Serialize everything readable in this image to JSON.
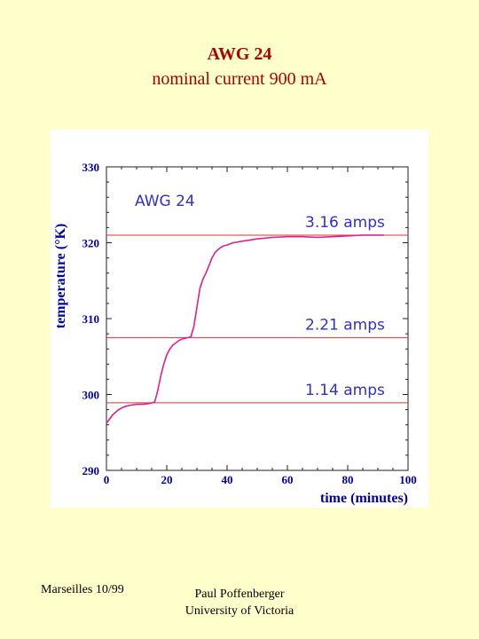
{
  "slide": {
    "title": "AWG 24",
    "subtitle": "nominal current 900 mA",
    "footer_left": "Marseilles 10/99",
    "footer_author": "Paul Poffenberger",
    "footer_affiliation": "University of Victoria"
  },
  "colors": {
    "background": "#ffffcc",
    "title": "#b00000",
    "axis_text": "#0000aa",
    "curve": "#e0208c",
    "reference_lines": "#e03030",
    "annotation": "#3030d0"
  },
  "chart_data": {
    "type": "line",
    "title": "",
    "xlabel": "time (minutes)",
    "ylabel": "temperature (°K)",
    "xlim": [
      0,
      100
    ],
    "ylim": [
      290,
      330
    ],
    "xticks": [
      0,
      20,
      40,
      60,
      80,
      100
    ],
    "yticks": [
      290,
      300,
      310,
      320,
      330
    ],
    "grid": false,
    "inset_label": "AWG 24",
    "series": [
      {
        "x": [
          0,
          2,
          4,
          6,
          8,
          10,
          12,
          14,
          16,
          17,
          18,
          19,
          20,
          21,
          22,
          23,
          24,
          25,
          26,
          27,
          28,
          29,
          30,
          31,
          32,
          33,
          34,
          35,
          36,
          37,
          38,
          39,
          40,
          42,
          45,
          50,
          55,
          60,
          65,
          70,
          75,
          80,
          85,
          90,
          92
        ],
        "y": [
          296.2,
          297.3,
          298.0,
          298.4,
          298.6,
          298.7,
          298.7,
          298.8,
          299.0,
          300.5,
          302.4,
          304.0,
          305.2,
          306.0,
          306.5,
          306.8,
          307.1,
          307.3,
          307.4,
          307.5,
          307.6,
          309.0,
          311.5,
          314.0,
          315.2,
          316.0,
          317.0,
          318.0,
          318.7,
          319.1,
          319.4,
          319.6,
          319.7,
          320.0,
          320.2,
          320.5,
          320.7,
          320.8,
          320.8,
          320.7,
          320.8,
          320.9,
          321.0,
          321.0,
          321.0
        ]
      }
    ],
    "reference_lines": [
      {
        "label": "3.16 amps",
        "y": 321.0
      },
      {
        "label": "2.21 amps",
        "y": 307.5
      },
      {
        "label": "1.14 amps",
        "y": 298.9
      }
    ]
  }
}
